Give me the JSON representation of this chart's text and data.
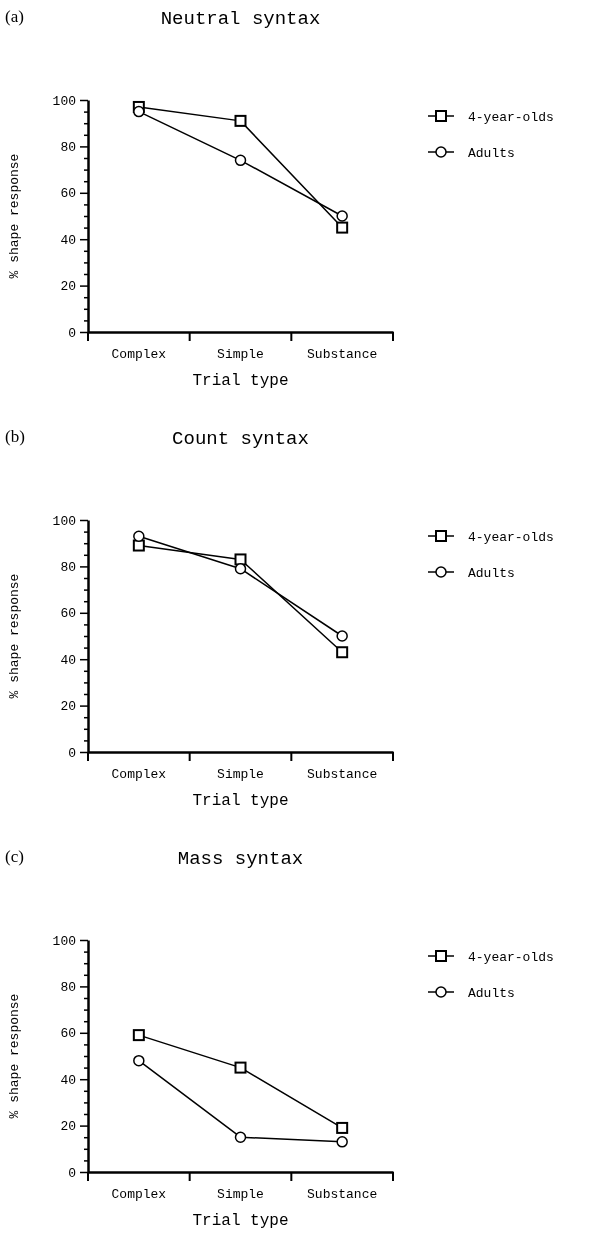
{
  "chart_data": [
    {
      "type": "line",
      "title": "Neutral syntax",
      "xlabel": "Trial type",
      "ylabel": "% shape response",
      "annotations": [
        "(a)"
      ],
      "categories": [
        "Complex",
        "Simple",
        "Substance"
      ],
      "ylim": [
        0,
        100
      ],
      "yticks": [
        0,
        {
          "value": 5,
          "label": null
        },
        {
          "value": 10,
          "label": null
        },
        {
          "value": 15,
          "label": null
        },
        20,
        {
          "value": 25,
          "label": null
        },
        {
          "value": 30,
          "label": null
        },
        {
          "value": 35,
          "label": null
        },
        40,
        {
          "value": 45,
          "label": null
        },
        {
          "value": 50,
          "label": null
        },
        {
          "value": 55,
          "label": null
        },
        60,
        {
          "value": 65,
          "label": null
        },
        {
          "value": 70,
          "label": null
        },
        {
          "value": 75,
          "label": null
        },
        80,
        {
          "value": 85,
          "label": null
        },
        {
          "value": 90,
          "label": null
        },
        {
          "value": 95,
          "label": null
        },
        100
      ],
      "legend": "right",
      "grid": false,
      "series": [
        {
          "name": "4-year-olds",
          "color": "#000000",
          "marker": "square",
          "values": [
            97,
            91,
            45
          ]
        },
        {
          "name": "Adults",
          "color": "#000000",
          "marker": "circle",
          "values": [
            95,
            74,
            50
          ]
        }
      ]
    },
    {
      "type": "line",
      "title": "Count syntax",
      "xlabel": "Trial type",
      "ylabel": "% shape response",
      "annotations": [
        "(b)"
      ],
      "categories": [
        "Complex",
        "Simple",
        "Substance"
      ],
      "ylim": [
        0,
        100
      ],
      "yticks": [
        0,
        {
          "value": 5,
          "label": null
        },
        {
          "value": 10,
          "label": null
        },
        {
          "value": 15,
          "label": null
        },
        20,
        {
          "value": 25,
          "label": null
        },
        {
          "value": 30,
          "label": null
        },
        {
          "value": 35,
          "label": null
        },
        40,
        {
          "value": 45,
          "label": null
        },
        {
          "value": 50,
          "label": null
        },
        {
          "value": 55,
          "label": null
        },
        60,
        {
          "value": 65,
          "label": null
        },
        {
          "value": 70,
          "label": null
        },
        {
          "value": 75,
          "label": null
        },
        80,
        {
          "value": 85,
          "label": null
        },
        {
          "value": 90,
          "label": null
        },
        {
          "value": 95,
          "label": null
        },
        100
      ],
      "legend": "right",
      "grid": false,
      "series": [
        {
          "name": "4-year-olds",
          "color": "#000000",
          "marker": "square",
          "values": [
            89,
            83,
            43
          ]
        },
        {
          "name": "Adults",
          "color": "#000000",
          "marker": "circle",
          "values": [
            93,
            79,
            50
          ]
        }
      ]
    },
    {
      "type": "line",
      "title": "Mass syntax",
      "xlabel": "Trial type",
      "ylabel": "% shape response",
      "annotations": [
        "(c)"
      ],
      "categories": [
        "Complex",
        "Simple",
        "Substance"
      ],
      "ylim": [
        0,
        100
      ],
      "yticks": [
        0,
        {
          "value": 5,
          "label": null
        },
        {
          "value": 10,
          "label": null
        },
        {
          "value": 15,
          "label": null
        },
        20,
        {
          "value": 25,
          "label": null
        },
        {
          "value": 30,
          "label": null
        },
        {
          "value": 35,
          "label": null
        },
        40,
        {
          "value": 45,
          "label": null
        },
        {
          "value": 50,
          "label": null
        },
        {
          "value": 55,
          "label": null
        },
        60,
        {
          "value": 65,
          "label": null
        },
        {
          "value": 70,
          "label": null
        },
        {
          "value": 75,
          "label": null
        },
        80,
        {
          "value": 85,
          "label": null
        },
        {
          "value": 90,
          "label": null
        },
        {
          "value": 95,
          "label": null
        },
        100
      ],
      "legend": "right",
      "grid": false,
      "series": [
        {
          "name": "4-year-olds",
          "color": "#000000",
          "marker": "square",
          "values": [
            59,
            45,
            19
          ]
        },
        {
          "name": "Adults",
          "color": "#000000",
          "marker": "circle",
          "values": [
            48,
            15,
            13
          ]
        }
      ]
    }
  ]
}
